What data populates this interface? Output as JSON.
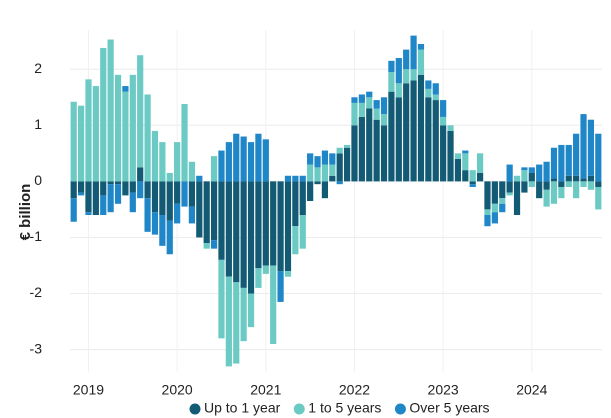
{
  "chart_data": {
    "type": "bar",
    "stacked": true,
    "y_label": "€ billion",
    "categories": [
      null,
      null,
      "2019",
      null,
      null,
      null,
      null,
      null,
      null,
      null,
      null,
      null,
      null,
      null,
      "2020",
      null,
      null,
      null,
      null,
      null,
      null,
      null,
      null,
      null,
      null,
      null,
      "2021",
      null,
      null,
      null,
      null,
      null,
      null,
      null,
      null,
      null,
      null,
      null,
      "2022",
      null,
      null,
      null,
      null,
      null,
      null,
      null,
      null,
      null,
      null,
      null,
      "2023",
      null,
      null,
      null,
      null,
      null,
      null,
      null,
      null,
      null,
      null,
      null,
      "2024",
      null,
      null,
      null,
      null,
      null,
      null,
      null,
      null,
      null
    ],
    "series": [
      {
        "name": "Up to 1 year",
        "color": "#135a75",
        "values": [
          -0.3,
          -0.2,
          -0.55,
          -0.6,
          -0.25,
          -0.05,
          -0.05,
          -0.25,
          -0.2,
          0.25,
          -0.3,
          -0.55,
          -0.6,
          -0.7,
          -0.4,
          0.0,
          -0.45,
          -1.0,
          -1.1,
          -1.05,
          -1.4,
          -1.7,
          -1.8,
          -1.9,
          -2.0,
          -1.55,
          -1.5,
          -1.5,
          -1.6,
          -1.6,
          -0.8,
          -0.6,
          -0.35,
          -0.05,
          -0.3,
          0.1,
          0.5,
          0.6,
          1.0,
          1.15,
          1.3,
          1.1,
          1.0,
          1.6,
          1.5,
          1.75,
          1.8,
          1.9,
          1.5,
          1.45,
          1.0,
          0.9,
          0.4,
          0.2,
          -0.05,
          0.15,
          -0.5,
          -0.4,
          -0.3,
          -0.2,
          -0.6,
          -0.2,
          0.15,
          -0.3,
          -0.15,
          0.05,
          -0.1,
          0.1,
          0.1,
          0.05,
          0.1,
          -0.1
        ]
      },
      {
        "name": "1 to 5 years",
        "color": "#6ccac4",
        "values": [
          1.42,
          1.35,
          1.82,
          1.7,
          2.38,
          2.53,
          1.9,
          1.6,
          1.9,
          2.0,
          1.55,
          0.9,
          0.7,
          0.15,
          0.7,
          1.38,
          0.35,
          0.0,
          -0.1,
          0.45,
          -1.4,
          -1.6,
          -1.45,
          -0.95,
          -0.6,
          -0.35,
          -0.15,
          -1.4,
          0.0,
          -0.1,
          -0.5,
          -0.6,
          0.3,
          0.25,
          0.3,
          0.2,
          0.1,
          0.05,
          0.4,
          0.25,
          0.2,
          0.2,
          0.2,
          0.35,
          0.25,
          0.25,
          0.2,
          0.45,
          0.15,
          0.1,
          0.15,
          0.1,
          0.1,
          0.3,
          0.2,
          0.35,
          -0.1,
          -0.15,
          -0.1,
          -0.05,
          0.1,
          0.2,
          -0.1,
          0.0,
          -0.3,
          -0.4,
          -0.2,
          -0.1,
          -0.3,
          -0.1,
          -0.15,
          -0.4
        ]
      },
      {
        "name": "Over 5 years",
        "color": "#1f86c8",
        "values": [
          -0.42,
          -0.05,
          -0.05,
          0.0,
          -0.35,
          -0.5,
          -0.35,
          0.1,
          -0.35,
          -0.3,
          -0.6,
          -0.4,
          -0.55,
          -0.6,
          -0.35,
          -0.45,
          -0.3,
          0.1,
          0.0,
          -0.15,
          0.55,
          0.7,
          0.85,
          0.8,
          0.7,
          0.85,
          0.75,
          0.0,
          -0.55,
          0.1,
          0.1,
          0.1,
          0.2,
          0.2,
          0.25,
          0.2,
          -0.05,
          0.0,
          0.1,
          0.15,
          0.1,
          0.15,
          0.3,
          0.2,
          0.45,
          0.35,
          0.6,
          0.1,
          0.15,
          0.2,
          0.3,
          0.0,
          0.0,
          0.05,
          -0.05,
          0.0,
          -0.2,
          -0.2,
          -0.15,
          0.3,
          0.0,
          0.05,
          0.1,
          0.3,
          0.35,
          0.55,
          0.65,
          0.55,
          0.75,
          1.15,
          1.0,
          0.85
        ]
      }
    ],
    "ylim": [
      -3.4,
      2.7
    ],
    "yticks": [
      -3,
      -2,
      -1,
      0,
      1,
      2
    ],
    "grid": true,
    "legend": "bottom"
  }
}
